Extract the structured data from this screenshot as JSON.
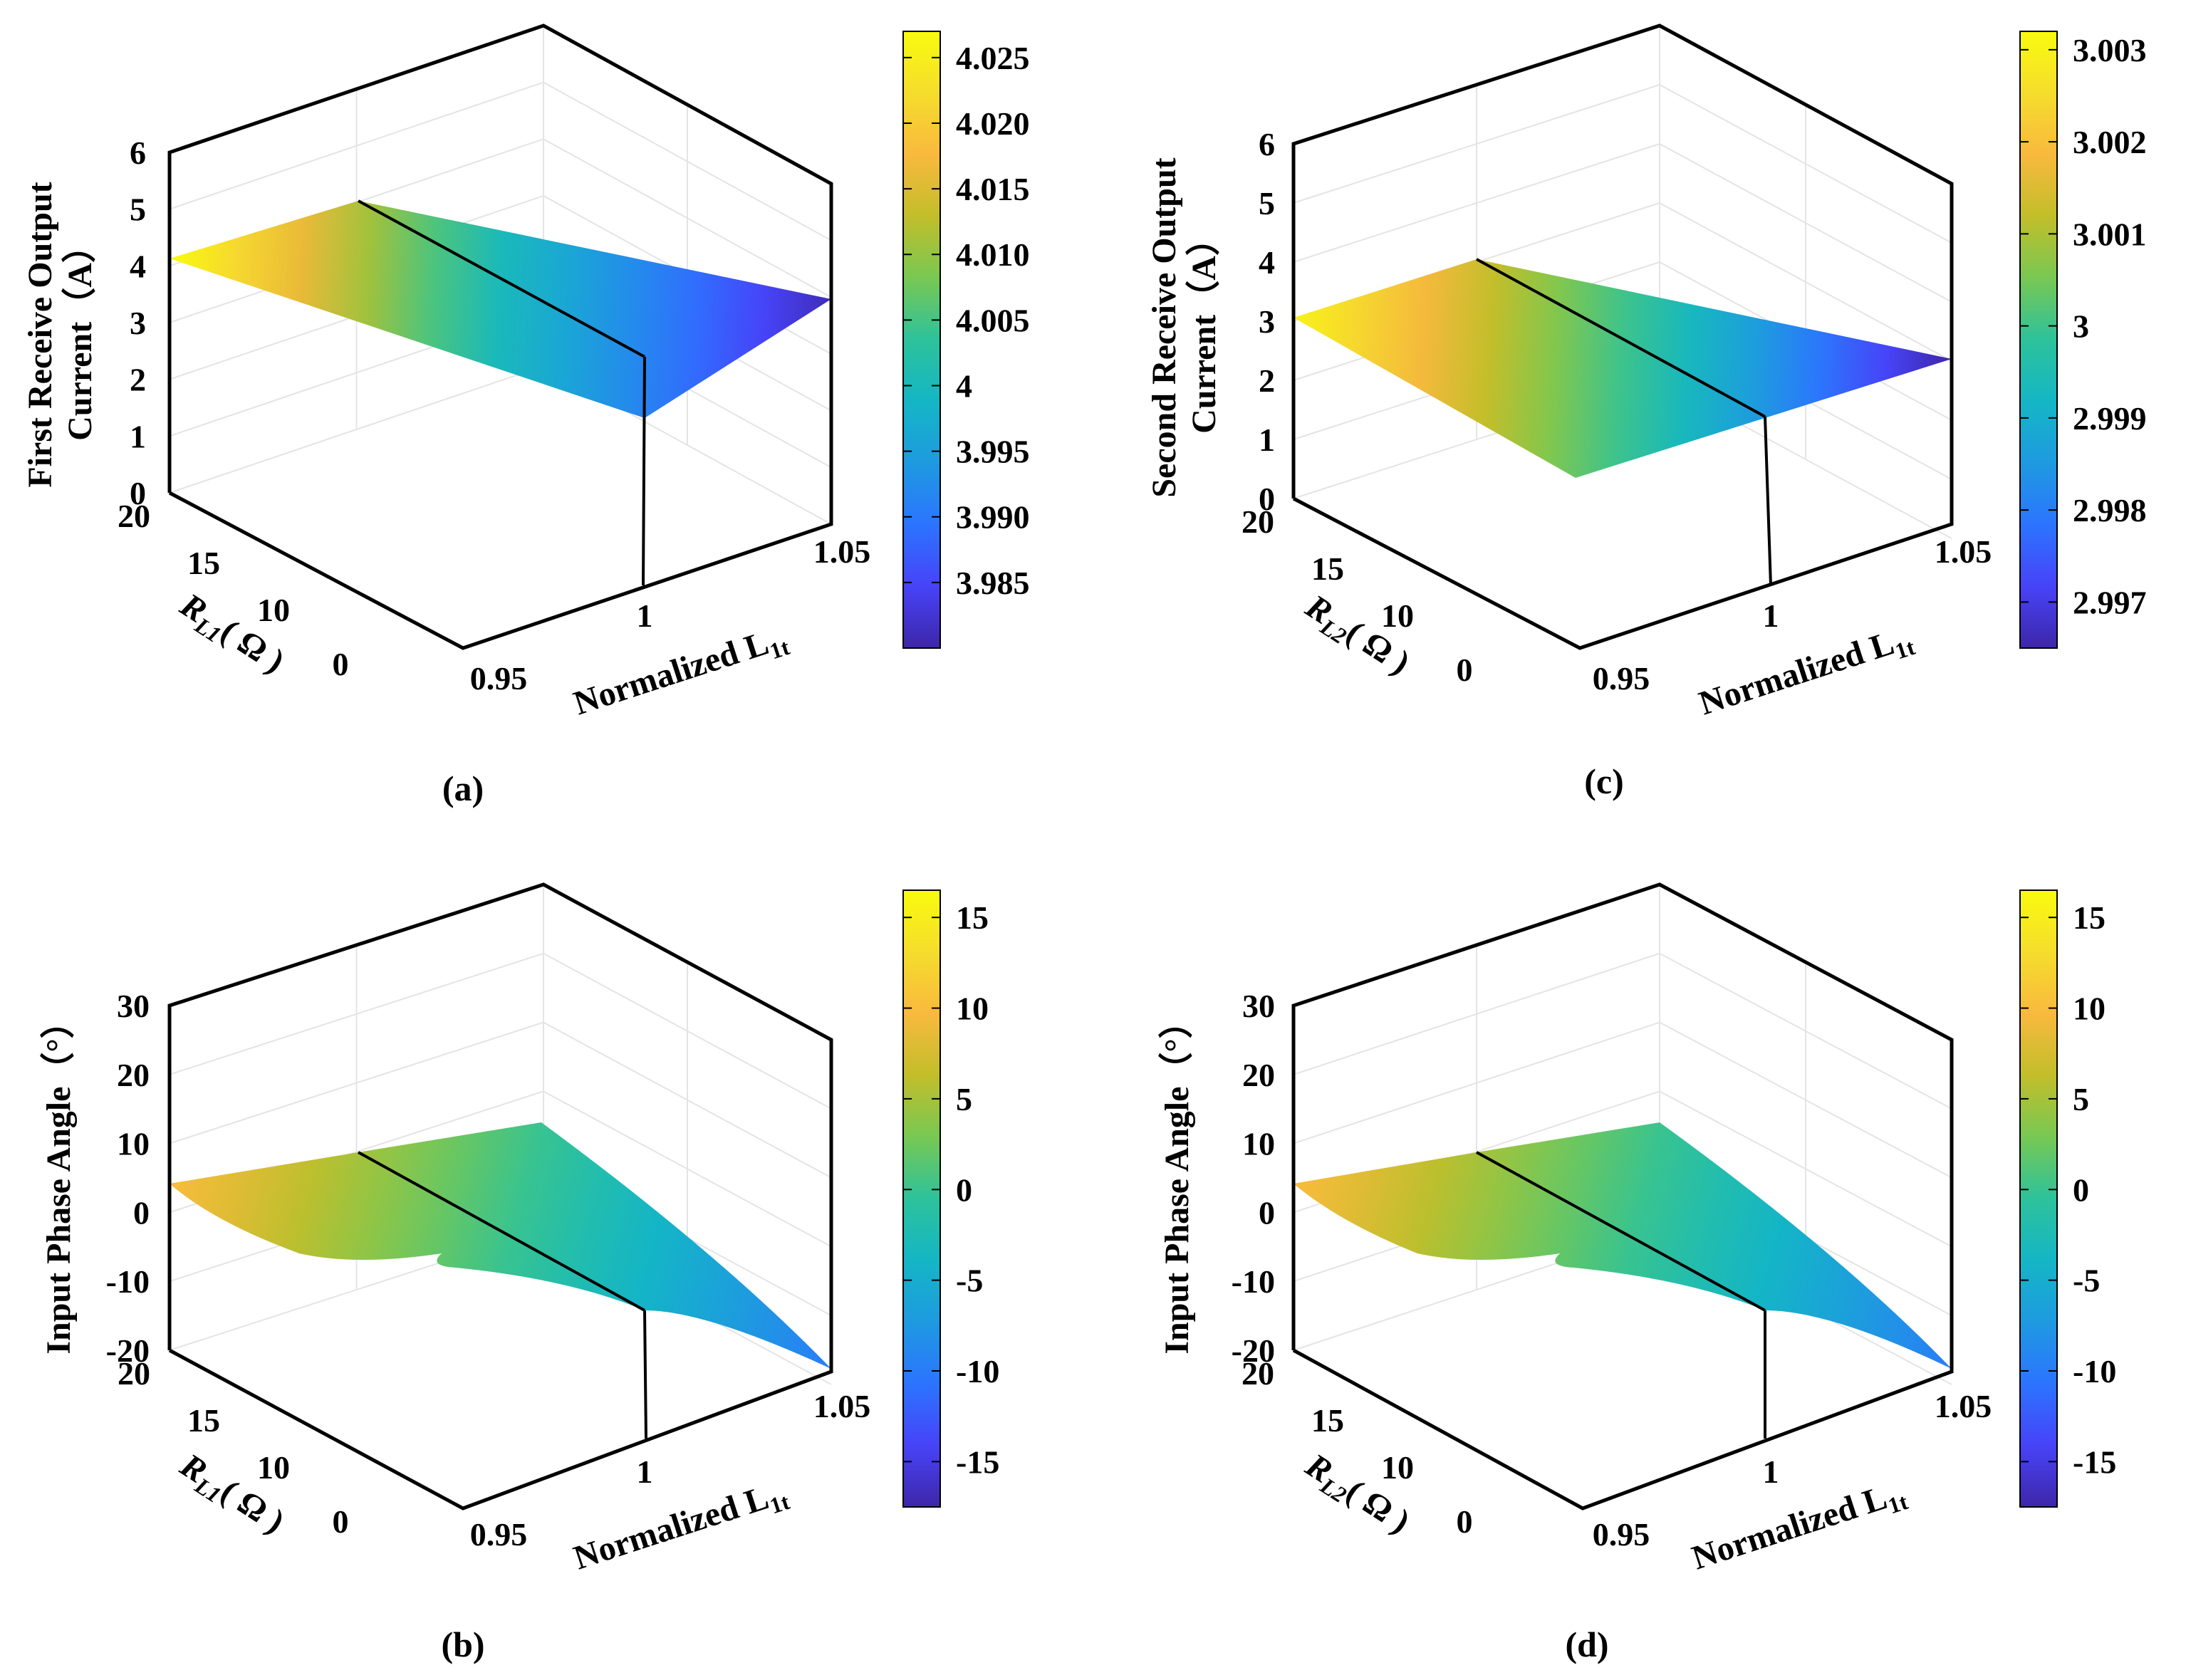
{
  "colormap": [
    "#3e26a8",
    "#4743f8",
    "#2c74ff",
    "#1e9ae0",
    "#14b6c5",
    "#2dc29b",
    "#78c853",
    "#c2be2a",
    "#f9b93e",
    "#f5dd2c",
    "#f9fb0e"
  ],
  "chart_data": [
    {
      "id": "a",
      "type": "surface",
      "caption": "(a)",
      "zlabel_line1": "First Receive Output",
      "zlabel_line2": "Current（A）",
      "ylabel_main": "R",
      "ylabel_sub": "L1",
      "ylabel_tail": "( Ω )",
      "xlabel_main": "Normalized L",
      "xlabel_sub": "1t",
      "x_range": [
        0.95,
        1.05
      ],
      "y_range": [
        0,
        20
      ],
      "z_range": [
        0,
        6
      ],
      "x_ticks": [
        "0.95",
        "1",
        "1.05"
      ],
      "y_ticks": [
        "0",
        "10",
        "15",
        "20"
      ],
      "z_ticks": [
        "0",
        "1",
        "2",
        "3",
        "4",
        "5",
        "6"
      ],
      "surface_z_at_x": [
        4.027,
        4.0,
        3.981
      ],
      "surface_min": 3.98,
      "surface_max": 4.027,
      "colorbar": {
        "min": 3.98,
        "max": 4.027,
        "ticks": [
          "3.985",
          "3.990",
          "3.995",
          "4",
          "4.005",
          "4.010",
          "4.015",
          "4.020",
          "4.025"
        ]
      }
    },
    {
      "id": "c",
      "type": "surface",
      "caption": "(c)",
      "zlabel_line1": "Second Receive Output",
      "zlabel_line2": "Current（A）",
      "ylabel_main": "R",
      "ylabel_sub": "L2",
      "ylabel_tail": "( Ω )",
      "xlabel_main": "Normalized L",
      "xlabel_sub": "1t",
      "x_range": [
        0.95,
        1.05
      ],
      "y_range": [
        0,
        20
      ],
      "z_range": [
        0,
        6
      ],
      "x_ticks": [
        "0.95",
        "1",
        "1.05"
      ],
      "y_ticks": [
        "0",
        "10",
        "15",
        "20"
      ],
      "z_ticks": [
        "0",
        "1",
        "2",
        "3",
        "4",
        "5",
        "6"
      ],
      "surface_z_at_x": [
        3.003,
        3.0,
        2.9965
      ],
      "surface_min": 2.9965,
      "surface_max": 3.0032,
      "colorbar": {
        "min": 2.9965,
        "max": 3.0032,
        "ticks": [
          "2.997",
          "2.998",
          "2.999",
          "3",
          "3.001",
          "3.002",
          "3.003"
        ]
      }
    },
    {
      "id": "b",
      "type": "surface",
      "caption": "(b)",
      "zlabel_line1": "Input Phase Angle（°）",
      "zlabel_line2": "",
      "ylabel_main": "R",
      "ylabel_sub": "L1",
      "ylabel_tail": "( Ω )",
      "xlabel_main": "Normalized L",
      "xlabel_sub": "1t",
      "x_range": [
        0.95,
        1.05
      ],
      "y_range": [
        0,
        20
      ],
      "z_range": [
        -20,
        30
      ],
      "x_ticks": [
        "0.95",
        "1",
        "1.05"
      ],
      "y_ticks": [
        "0",
        "10",
        "15",
        "20"
      ],
      "z_ticks": [
        "-20",
        "-10",
        "0",
        "10",
        "20",
        "30"
      ],
      "surface_z_at_x_high_R": [
        5,
        0,
        -3
      ],
      "surface_z_at_x_low_R": [
        15,
        0,
        -17
      ],
      "surface_min": -17.5,
      "surface_max": 16.5,
      "colorbar": {
        "min": -17.5,
        "max": 16.5,
        "ticks": [
          "-15",
          "-10",
          "-5",
          "0",
          "5",
          "10",
          "15"
        ]
      }
    },
    {
      "id": "d",
      "type": "surface",
      "caption": "(d)",
      "zlabel_line1": "Input Phase Angle（°）",
      "zlabel_line2": "",
      "ylabel_main": "R",
      "ylabel_sub": "L2",
      "ylabel_tail": "( Ω )",
      "xlabel_main": "Normalized L",
      "xlabel_sub": "1t",
      "x_range": [
        0.95,
        1.05
      ],
      "y_range": [
        0,
        20
      ],
      "z_range": [
        -20,
        30
      ],
      "x_ticks": [
        "0.95",
        "1",
        "1.05"
      ],
      "y_ticks": [
        "0",
        "10",
        "15",
        "20"
      ],
      "z_ticks": [
        "-20",
        "-10",
        "0",
        "10",
        "20",
        "30"
      ],
      "surface_z_at_x_high_R": [
        5,
        0,
        -3
      ],
      "surface_z_at_x_low_R": [
        15,
        0,
        -17
      ],
      "surface_min": -17.5,
      "surface_max": 16.5,
      "colorbar": {
        "min": -17.5,
        "max": 16.5,
        "ticks": [
          "-15",
          "-10",
          "-5",
          "0",
          "5",
          "10",
          "15"
        ]
      }
    }
  ]
}
